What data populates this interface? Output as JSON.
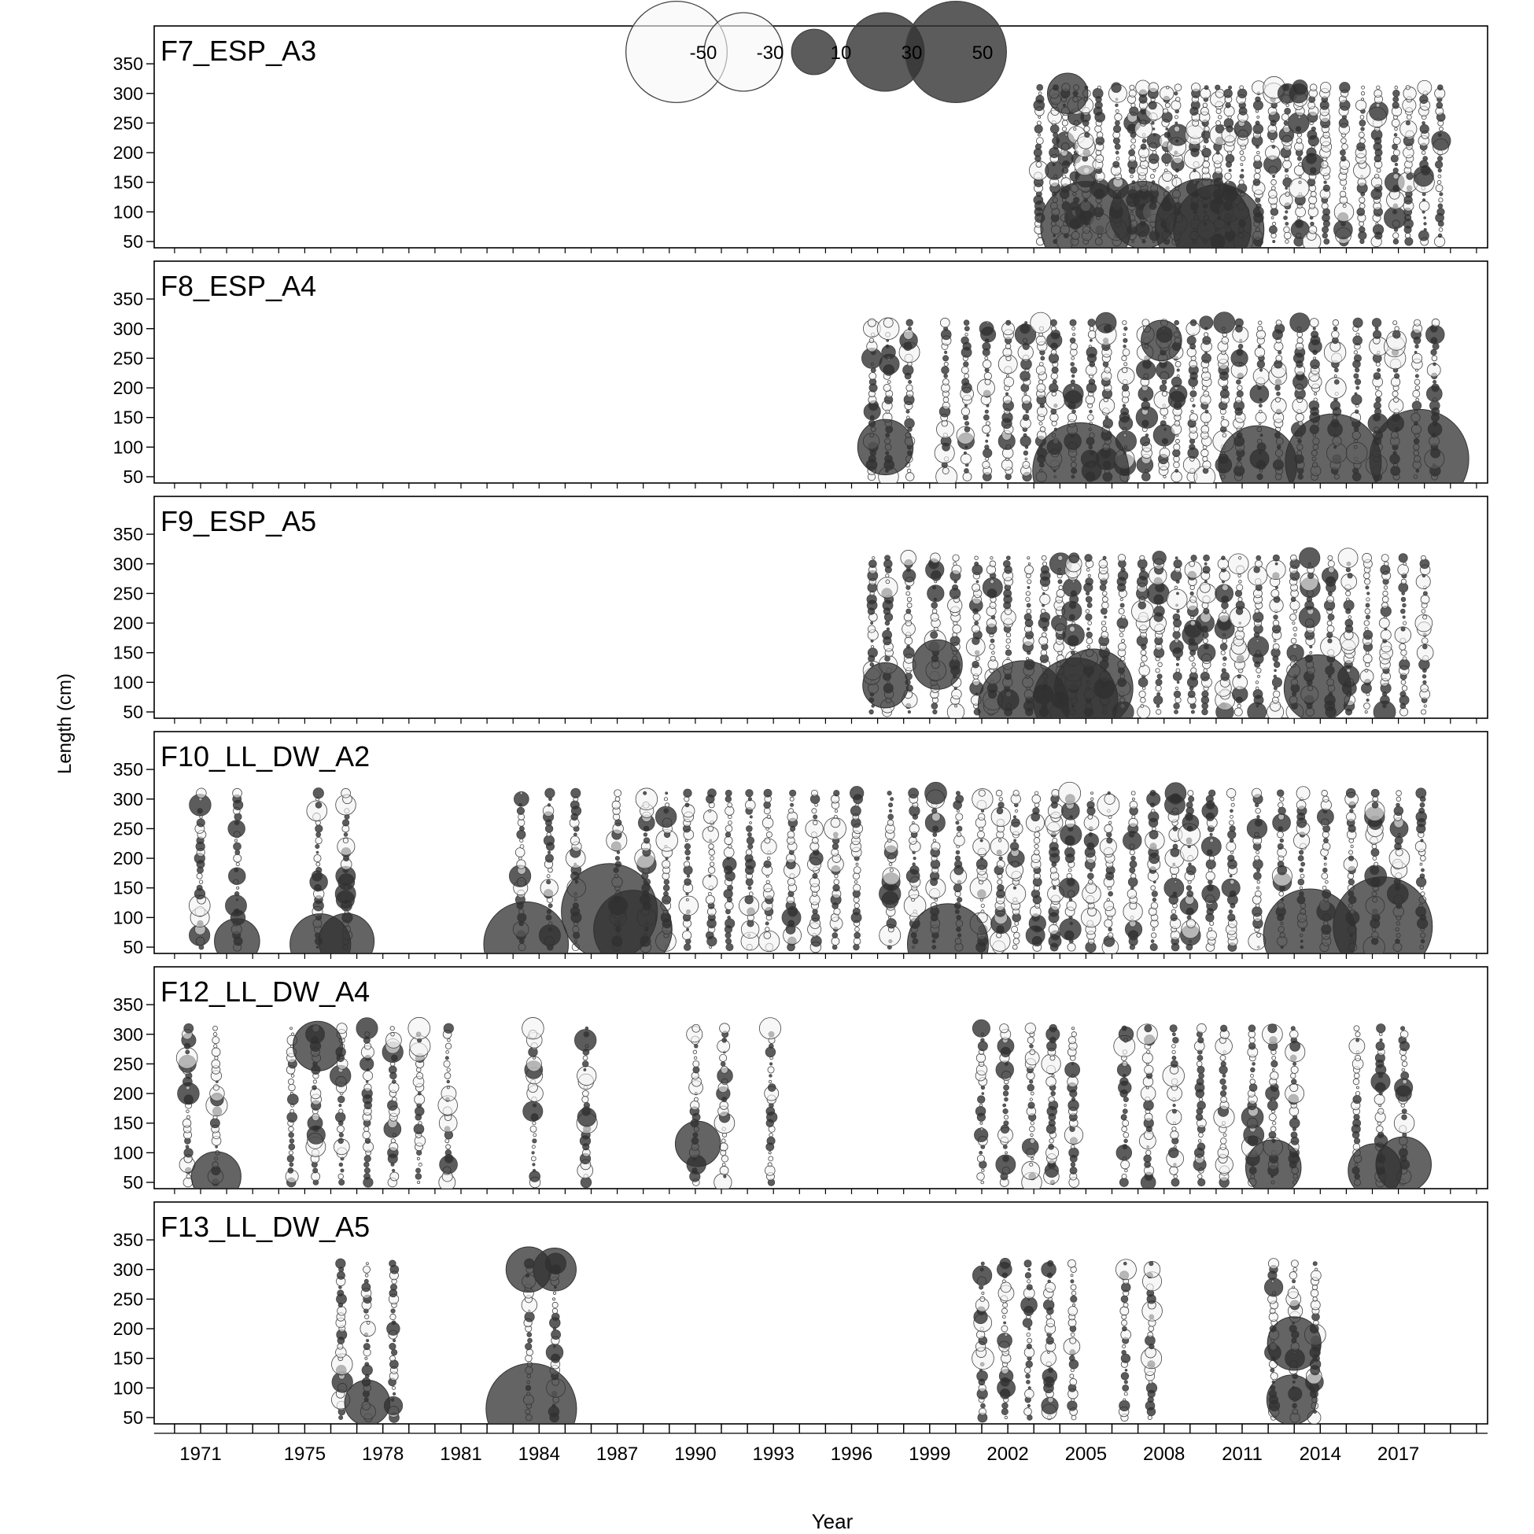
{
  "chart_data": {
    "type": "scatter",
    "encoding": "bubble residuals by year and length bin",
    "xlabel": "Year",
    "ylabel": "Length (cm)",
    "x_ticks": [
      1971,
      1975,
      1978,
      1981,
      1984,
      1987,
      1990,
      1993,
      1996,
      1999,
      2002,
      2005,
      2008,
      2011,
      2014,
      2017
    ],
    "y_ticks": [
      50,
      100,
      150,
      200,
      250,
      300,
      350
    ],
    "legend": {
      "position": "top-center",
      "values": [
        -50,
        -30,
        10,
        30,
        50
      ]
    },
    "colors": {
      "positive": "#303030",
      "negative": "#f4f4f4",
      "edge": "#444444"
    },
    "panels": [
      {
        "name": "F7_ESP_A3",
        "years": [
          2003.2,
          2003.8,
          2004.2,
          2004.6,
          2005.0,
          2005.5,
          2006.2,
          2006.8,
          2007.2,
          2007.6,
          2008.1,
          2008.5,
          2009.2,
          2009.6,
          2010.1,
          2010.5,
          2011.0,
          2011.6,
          2012.2,
          2012.7,
          2013.2,
          2013.7,
          2014.2,
          2014.9,
          2015.6,
          2016.2,
          2016.9,
          2017.4,
          2018.0,
          2018.6
        ],
        "big_bubbles": [
          {
            "year": 2005.0,
            "length": 75,
            "value": 40
          },
          {
            "year": 2009.5,
            "length": 75,
            "value": 45
          },
          {
            "year": 2010.1,
            "length": 70,
            "value": 40
          },
          {
            "year": 2007.2,
            "length": 95,
            "value": 22
          },
          {
            "year": 2004.3,
            "length": 300,
            "value": 8
          }
        ]
      },
      {
        "name": "F8_ESP_A4",
        "years": [
          1996.8,
          1997.4,
          1998.2,
          1999.6,
          2000.4,
          2001.2,
          2002.0,
          2002.7,
          2003.3,
          2003.8,
          2004.5,
          2005.2,
          2005.8,
          2006.5,
          2007.3,
          2008.0,
          2008.5,
          2009.1,
          2009.6,
          2010.3,
          2010.9,
          2011.7,
          2012.4,
          2013.2,
          2013.8,
          2014.6,
          2015.4,
          2016.2,
          2016.9,
          2017.7,
          2018.4
        ],
        "big_bubbles": [
          {
            "year": 2004.8,
            "length": 60,
            "value": 45
          },
          {
            "year": 2014.5,
            "length": 75,
            "value": 45
          },
          {
            "year": 2017.8,
            "length": 80,
            "value": 48
          },
          {
            "year": 2011.6,
            "length": 70,
            "value": 30
          },
          {
            "year": 1997.3,
            "length": 100,
            "value": 15
          },
          {
            "year": 2007.9,
            "length": 280,
            "value": 8
          }
        ]
      },
      {
        "name": "F9_ESP_A5",
        "years": [
          1996.8,
          1997.4,
          1998.2,
          1999.2,
          2000.0,
          2000.8,
          2001.4,
          2002.0,
          2002.8,
          2003.4,
          2004.0,
          2004.5,
          2005.1,
          2005.7,
          2006.4,
          2007.2,
          2007.8,
          2008.5,
          2009.1,
          2009.6,
          2010.3,
          2010.9,
          2011.6,
          2012.3,
          2013.0,
          2013.6,
          2014.4,
          2015.1,
          2015.8,
          2016.5,
          2017.2,
          2018.0
        ],
        "big_bubbles": [
          {
            "year": 2002.6,
            "length": 60,
            "value": 40
          },
          {
            "year": 2004.6,
            "length": 70,
            "value": 35
          },
          {
            "year": 2005.3,
            "length": 90,
            "value": 30
          },
          {
            "year": 2013.9,
            "length": 90,
            "value": 22
          },
          {
            "year": 1999.3,
            "length": 130,
            "value": 12
          },
          {
            "year": 1997.3,
            "length": 95,
            "value": 10
          }
        ]
      },
      {
        "name": "F10_LL_DW_A2",
        "years": [
          1971.0,
          1972.4,
          1975.5,
          1976.6,
          1983.3,
          1984.4,
          1985.4,
          1987.0,
          1988.1,
          1988.9,
          1989.7,
          1990.6,
          1991.3,
          1992.1,
          1992.8,
          1993.7,
          1994.6,
          1995.4,
          1996.2,
          1997.5,
          1998.4,
          1999.2,
          2000.1,
          2001.0,
          2001.7,
          2002.3,
          2003.1,
          2003.8,
          2004.4,
          2005.2,
          2005.9,
          2006.8,
          2007.6,
          2008.4,
          2009.0,
          2009.8,
          2010.6,
          2011.6,
          2012.5,
          2013.3,
          2014.2,
          2015.2,
          2016.1,
          2017.0,
          2017.9
        ],
        "big_bubbles": [
          {
            "year": 1983.5,
            "length": 55,
            "value": 35
          },
          {
            "year": 1986.7,
            "length": 110,
            "value": 45
          },
          {
            "year": 1987.6,
            "length": 80,
            "value": 30
          },
          {
            "year": 1999.7,
            "length": 55,
            "value": 32
          },
          {
            "year": 2013.6,
            "length": 70,
            "value": 42
          },
          {
            "year": 2016.4,
            "length": 85,
            "value": 48
          },
          {
            "year": 1975.6,
            "length": 55,
            "value": 18
          },
          {
            "year": 1976.6,
            "length": 60,
            "value": 15
          },
          {
            "year": 1972.4,
            "length": 60,
            "value": 10
          }
        ]
      },
      {
        "name": "F12_LL_DW_A4",
        "years": [
          1970.5,
          1971.6,
          1974.5,
          1975.4,
          1976.4,
          1977.4,
          1978.4,
          1979.4,
          1980.5,
          1983.8,
          1985.8,
          1990.0,
          1991.1,
          1992.9,
          2001.0,
          2001.9,
          2002.9,
          2003.7,
          2004.5,
          2006.5,
          2007.4,
          2008.4,
          2009.4,
          2010.3,
          2011.4,
          2012.2,
          2013.0,
          2015.4,
          2016.3,
          2017.2
        ],
        "big_bubbles": [
          {
            "year": 1971.6,
            "length": 60,
            "value": 12
          },
          {
            "year": 1975.5,
            "length": 280,
            "value": 12
          },
          {
            "year": 2012.2,
            "length": 75,
            "value": 15
          },
          {
            "year": 2016.1,
            "length": 70,
            "value": 14
          },
          {
            "year": 2017.2,
            "length": 80,
            "value": 15
          },
          {
            "year": 1990.1,
            "length": 115,
            "value": 10
          }
        ]
      },
      {
        "name": "F13_LL_DW_A5",
        "years": [
          1976.4,
          1977.4,
          1978.4,
          1983.6,
          1984.6,
          2001.0,
          2001.9,
          2002.8,
          2003.6,
          2004.5,
          2006.5,
          2007.5,
          2012.2,
          2013.0,
          2013.8
        ],
        "big_bubbles": [
          {
            "year": 1983.7,
            "length": 65,
            "value": 40
          },
          {
            "year": 1983.6,
            "length": 300,
            "value": 10
          },
          {
            "year": 1984.6,
            "length": 300,
            "value": 9
          },
          {
            "year": 2013.0,
            "length": 175,
            "value": 14
          },
          {
            "year": 2012.9,
            "length": 80,
            "value": 12
          },
          {
            "year": 1977.4,
            "length": 75,
            "value": 10
          }
        ]
      }
    ]
  }
}
